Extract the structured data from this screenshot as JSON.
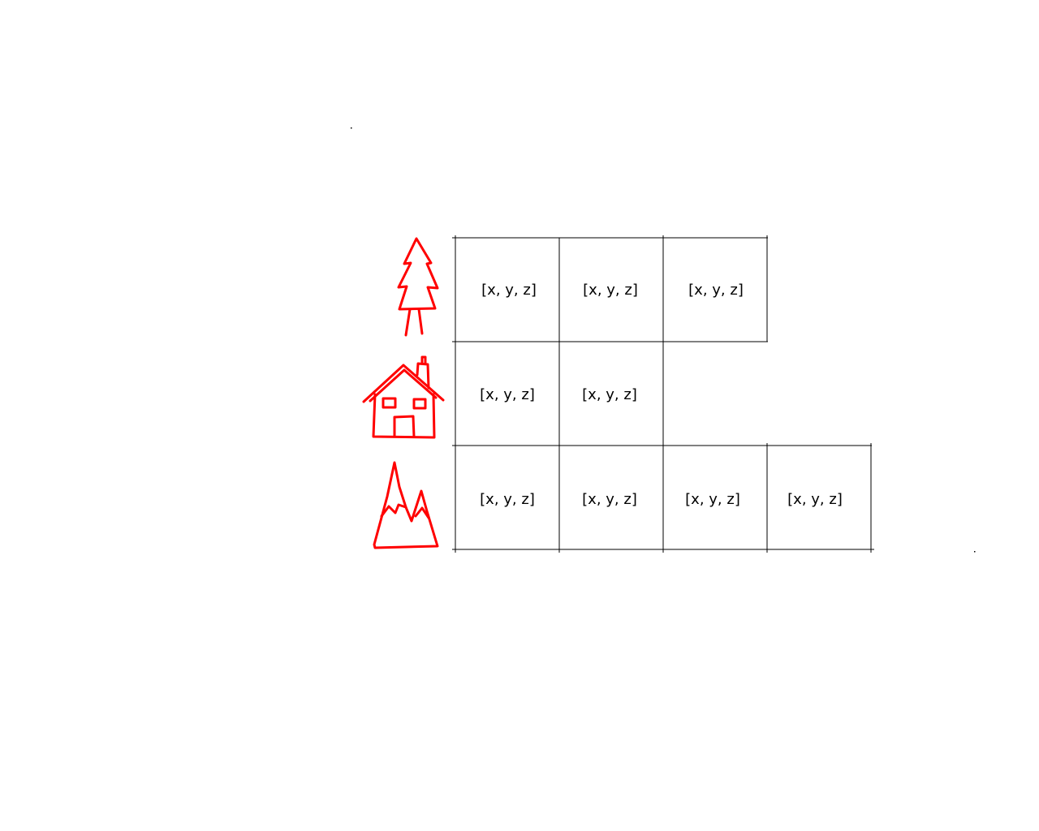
{
  "colors": {
    "icon_stroke": "#ff0000",
    "grid_line": "#000000",
    "text": "#000000"
  },
  "rows": [
    {
      "icon": "tree-icon",
      "cells": [
        "[x, y, z]",
        "[x, y, z]",
        "[x, y, z]"
      ]
    },
    {
      "icon": "house-icon",
      "cells": [
        "[x, y, z]",
        "[x, y, z]"
      ]
    },
    {
      "icon": "mountain-icon",
      "cells": [
        "[x, y, z]",
        "[x, y, z]",
        "[x, y, z]",
        "[x, y, z]"
      ]
    }
  ]
}
